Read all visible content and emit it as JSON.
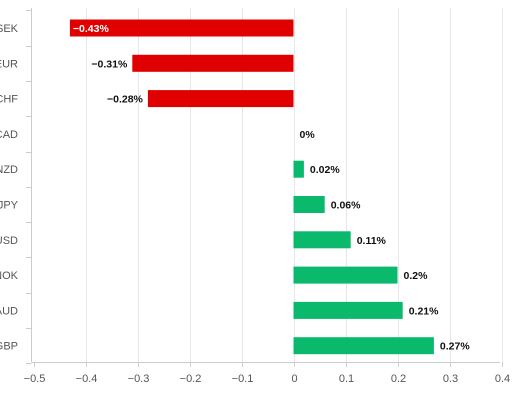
{
  "chart_data": {
    "type": "bar",
    "orientation": "horizontal",
    "categories": [
      "SEK",
      "EUR",
      "CHF",
      "CAD",
      "NZD",
      "JPY",
      "USD",
      "NOK",
      "AUD",
      "GBP"
    ],
    "values": [
      -0.43,
      -0.31,
      -0.28,
      0,
      0.02,
      0.06,
      0.11,
      0.2,
      0.21,
      0.27
    ],
    "value_labels": [
      "−0.43%",
      "−0.31%",
      "−0.28%",
      "0%",
      "0.02%",
      "0.06%",
      "0.11%",
      "0.2%",
      "0.21%",
      "0.27%"
    ],
    "xlim": [
      -0.5,
      0.4
    ],
    "x_ticks": [
      -0.5,
      -0.4,
      -0.3,
      -0.2,
      -0.1,
      0,
      0.1,
      0.2,
      0.3,
      0.4
    ],
    "x_tick_labels": [
      "−0.5",
      "−0.4",
      "−0.3",
      "−0.2",
      "−0.1",
      "0",
      "0.1",
      "0.2",
      "0.3",
      "0.4"
    ],
    "grid": true,
    "colors": {
      "negative": "#e00000",
      "positive": "#0ab96b"
    },
    "title": "",
    "xlabel": "",
    "ylabel": ""
  }
}
